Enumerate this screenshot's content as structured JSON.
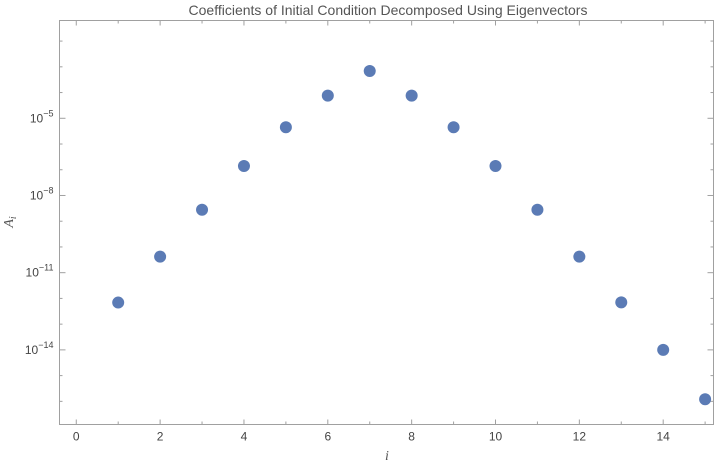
{
  "chart_data": {
    "type": "scatter",
    "title": "Coefficients of Initial Condition Decomposed Using Eigenvectors",
    "xlabel": "i",
    "ylabel": "A",
    "ylabel_subscript": "i",
    "yscale": "log10",
    "xlim": [
      -0.4,
      15.2
    ],
    "ylim_exponent": [
      -16.9,
      -1.2
    ],
    "x_ticks": [
      0,
      2,
      4,
      6,
      8,
      10,
      12,
      14
    ],
    "x_tick_labels": [
      "0",
      "2",
      "4",
      "6",
      "8",
      "10",
      "12",
      "14"
    ],
    "y_major_exponents": [
      -14,
      -11,
      -8,
      -5
    ],
    "y_tick_labels": [
      {
        "base": "10",
        "exp": "−14"
      },
      {
        "base": "10",
        "exp": "−11"
      },
      {
        "base": "10",
        "exp": "−8"
      },
      {
        "base": "10",
        "exp": "−5"
      }
    ],
    "y_minor_exponents": [
      -16,
      -15,
      -13,
      -12,
      -10,
      -9,
      -7,
      -6,
      -4,
      -3,
      -2
    ],
    "marker_color": "#5b7bb5",
    "grid": false,
    "points": [
      {
        "x": 1,
        "y": 6.9e-13
      },
      {
        "x": 2,
        "y": 4.2e-11
      },
      {
        "x": 3,
        "y": 2.8e-09
      },
      {
        "x": 4,
        "y": 1.4e-07
      },
      {
        "x": 5,
        "y": 4.5e-06
      },
      {
        "x": 6,
        "y": 7.6e-05
      },
      {
        "x": 7,
        "y": 0.00069
      },
      {
        "x": 8,
        "y": 7.6e-05
      },
      {
        "x": 9,
        "y": 4.5e-06
      },
      {
        "x": 10,
        "y": 1.4e-07
      },
      {
        "x": 11,
        "y": 2.8e-09
      },
      {
        "x": 12,
        "y": 4.2e-11
      },
      {
        "x": 13,
        "y": 7e-13
      },
      {
        "x": 14,
        "y": 1e-14
      },
      {
        "x": 15,
        "y": 1.2e-16
      }
    ]
  }
}
